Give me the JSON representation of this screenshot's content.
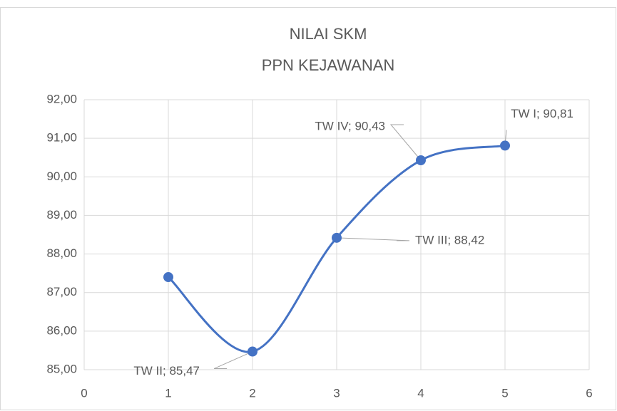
{
  "chart_data": {
    "type": "scatter-smooth",
    "title": [
      "NILAI SKM",
      "PPN KEJAWANAN"
    ],
    "x": [
      1,
      2,
      3,
      4,
      5
    ],
    "values": [
      87.4,
      85.47,
      88.42,
      90.43,
      90.81
    ],
    "value_labels": [
      null,
      "TW II; 85,47",
      "TW III; 88,42",
      "TW IV; 90,43",
      "TW I; 90,81"
    ],
    "color": "#4472c4",
    "xlim": [
      0,
      6
    ],
    "xticks": [
      0,
      1,
      2,
      3,
      4,
      5,
      6
    ],
    "ylim": [
      85,
      92
    ],
    "yticks": [
      {
        "value": 85,
        "label": "85,00"
      },
      {
        "value": 86,
        "label": "86,00"
      },
      {
        "value": 87,
        "label": "87,00"
      },
      {
        "value": 88,
        "label": "88,00"
      },
      {
        "value": 89,
        "label": "89,00"
      },
      {
        "value": 90,
        "label": "90,00"
      },
      {
        "value": 91,
        "label": "91,00"
      },
      {
        "value": 92,
        "label": "92,00"
      }
    ],
    "grid": true
  }
}
